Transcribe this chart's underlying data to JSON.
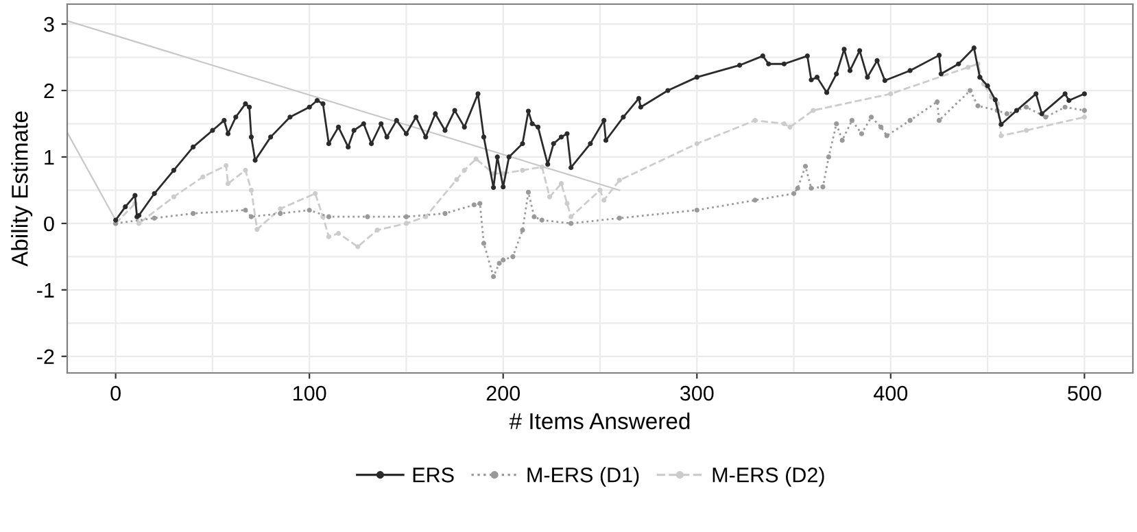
{
  "chart_data": {
    "type": "line",
    "xlabel": "# Items Answered",
    "ylabel": "Ability Estimate",
    "xlim": [
      -25,
      525
    ],
    "ylim": [
      -2.25,
      3.3
    ],
    "xticks": [
      0,
      {
        "value": 50,
        "label": null
      },
      100,
      {
        "value": 150,
        "label": null
      },
      200,
      {
        "value": 250,
        "label": null
      },
      300,
      {
        "value": 350,
        "label": null
      },
      400,
      {
        "value": 450,
        "label": null
      },
      500
    ],
    "yticks": [
      -2,
      {
        "value": -1.5,
        "label": null
      },
      -1,
      {
        "value": -0.5,
        "label": null
      },
      0,
      {
        "value": 0.5,
        "label": null
      },
      1,
      {
        "value": 1.5,
        "label": null
      },
      2,
      {
        "value": 2.5,
        "label": null
      },
      3
    ],
    "grid": true,
    "legend": "bottom",
    "series": [
      {
        "name": "ERS",
        "color": "#2b2b2b",
        "marker": "circle",
        "line_style": "solid",
        "x": [
          0,
          5,
          10,
          11,
          12,
          20,
          30,
          40,
          50,
          56,
          58,
          62,
          67,
          69,
          70,
          72,
          80,
          90,
          100,
          104,
          107,
          110,
          115,
          120,
          123,
          128,
          132,
          137,
          140,
          145,
          150,
          155,
          160,
          165,
          170,
          175,
          180,
          187,
          190,
          195,
          197,
          200,
          203,
          210,
          213,
          215,
          218,
          223,
          226,
          230,
          233,
          235,
          245,
          252,
          253,
          262,
          270,
          271,
          285,
          300,
          322,
          334,
          337,
          345,
          357,
          359,
          362,
          367,
          372,
          376,
          379,
          384,
          388,
          393,
          397,
          410,
          425,
          426,
          435,
          443,
          446,
          450,
          454,
          457,
          465,
          475,
          478,
          490,
          492,
          500
        ],
        "values": [
          0.05,
          0.25,
          0.42,
          0.1,
          0.12,
          0.45,
          0.8,
          1.15,
          1.4,
          1.55,
          1.35,
          1.6,
          1.8,
          1.75,
          1.3,
          0.95,
          1.3,
          1.6,
          1.75,
          1.85,
          1.8,
          1.2,
          1.45,
          1.15,
          1.4,
          1.5,
          1.2,
          1.5,
          1.3,
          1.55,
          1.35,
          1.6,
          1.3,
          1.65,
          1.4,
          1.7,
          1.45,
          1.95,
          1.3,
          0.54,
          1.0,
          0.55,
          1.0,
          1.2,
          1.69,
          1.5,
          1.45,
          0.89,
          1.2,
          1.3,
          1.35,
          0.84,
          1.2,
          1.55,
          1.25,
          1.6,
          1.88,
          1.75,
          2.0,
          2.2,
          2.38,
          2.52,
          2.4,
          2.4,
          2.52,
          2.16,
          2.2,
          1.97,
          2.25,
          2.62,
          2.3,
          2.6,
          2.2,
          2.45,
          2.15,
          2.3,
          2.53,
          2.25,
          2.4,
          2.64,
          2.2,
          2.07,
          1.86,
          1.49,
          1.7,
          1.95,
          1.65,
          1.95,
          1.85,
          1.95
        ]
      },
      {
        "name": "M-ERS (D1)",
        "color": "#999999",
        "marker": "circle",
        "line_style": "dotted",
        "x": [
          0,
          20,
          40,
          67,
          70,
          85,
          100,
          110,
          130,
          150,
          170,
          185,
          188,
          190,
          195,
          198,
          200,
          205,
          210,
          213,
          216,
          220,
          235,
          260,
          300,
          330,
          350,
          352,
          356,
          359,
          365,
          368,
          372,
          375,
          380,
          385,
          390,
          395,
          398,
          410,
          424,
          425,
          441,
          445,
          455,
          460,
          470,
          480,
          490,
          500
        ],
        "values": [
          0,
          0.08,
          0.15,
          0.2,
          0.1,
          0.15,
          0.2,
          0.1,
          0.1,
          0.1,
          0.15,
          0.28,
          0.3,
          -0.3,
          -0.8,
          -0.6,
          -0.55,
          -0.5,
          -0.1,
          0.47,
          0.1,
          0.05,
          0.0,
          0.08,
          0.2,
          0.35,
          0.45,
          0.53,
          0.86,
          0.53,
          0.55,
          1.0,
          1.5,
          1.25,
          1.55,
          1.35,
          1.6,
          1.45,
          1.32,
          1.55,
          1.83,
          1.55,
          2.0,
          1.77,
          1.7,
          1.65,
          1.75,
          1.6,
          1.75,
          1.7
        ]
      },
      {
        "name": "M-ERS (D2)",
        "color": "#cccccc",
        "marker": "circle",
        "line_style": "dashed",
        "x": [
          0,
          10,
          12,
          30,
          45,
          57,
          58,
          67,
          70,
          73,
          85,
          103,
          107,
          110,
          115,
          125,
          135,
          150,
          160,
          176,
          180,
          186,
          195,
          200,
          210,
          220,
          224,
          230,
          233,
          235,
          250,
          252,
          260,
          300,
          330,
          345,
          348,
          360,
          400,
          440,
          445,
          448,
          452,
          455,
          457,
          470,
          500
        ],
        "values": [
          0,
          0.3,
          0.0,
          0.4,
          0.7,
          0.87,
          0.6,
          0.8,
          0.5,
          -0.09,
          0.22,
          0.45,
          0.1,
          -0.2,
          -0.15,
          -0.35,
          -0.1,
          0.0,
          0.1,
          0.66,
          0.8,
          0.97,
          0.75,
          0.75,
          0.8,
          0.85,
          0.4,
          0.6,
          0.3,
          0.1,
          0.5,
          0.35,
          0.65,
          1.2,
          1.55,
          1.5,
          1.45,
          1.7,
          1.95,
          2.35,
          2.4,
          2.1,
          1.9,
          1.8,
          1.32,
          1.4,
          1.6
        ]
      },
      {
        "color": "#c8c8c8",
        "marker": "none",
        "line_style": "solid",
        "x": [
          -25,
          260
        ],
        "values": [
          3.05,
          0.5
        ]
      },
      {
        "color": "#c8c8c8",
        "marker": "none",
        "line_style": "solid",
        "x": [
          -25,
          0
        ],
        "values": [
          1.37,
          0.05
        ]
      }
    ]
  }
}
